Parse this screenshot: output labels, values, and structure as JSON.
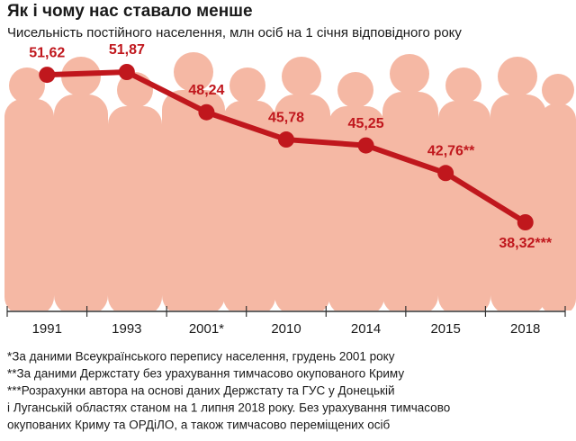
{
  "chart_data": {
    "type": "line",
    "title": "Як і чому нас ставало менше",
    "subtitle": "Чисельність постійного населення, млн осіб на 1 січня відповідного року",
    "categories": [
      "1991",
      "1993",
      "2001*",
      "2010",
      "2014",
      "2015",
      "2018"
    ],
    "series": [
      {
        "color": "#c0171d",
        "values": [
          51.62,
          51.87,
          48.24,
          45.78,
          45.25,
          42.76,
          38.32
        ],
        "value_labels": [
          "51,62",
          "51,87",
          "48,24",
          "45,78",
          "45,25",
          "42,76**",
          "38,32***"
        ]
      }
    ],
    "footnotes": [
      "*За даними Всеукраїнського перепису населення, грудень 2001 року",
      "**За даними Держстату без урахування тимчасово окупованого Криму",
      "***Розрахунки автора на основі даних Держстату та ГУС у Донецькій",
      "і Луганській областях станом на 1 липня 2018 року. Без урахування тимчасово",
      "окупованих Криму та ОРДіЛО, а також тимчасово переміщених осіб"
    ]
  }
}
